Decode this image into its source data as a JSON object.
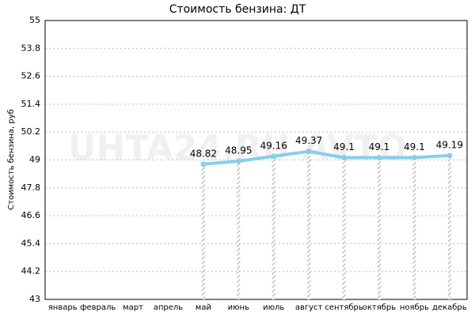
{
  "chart_data": {
    "type": "line",
    "title": "Стоимость бензина: ДТ",
    "y_label": "Стоимость бензина, руб",
    "watermark": "UHTA24.RU AVTO",
    "categories": [
      "январь",
      "февраль",
      "март",
      "апрель",
      "май",
      "июнь",
      "июль",
      "август",
      "сентябрь",
      "октябрь",
      "ноябрь",
      "декабрь"
    ],
    "series": [
      {
        "name": "ДТ",
        "color": "#87ceeb",
        "values": [
          null,
          null,
          null,
          null,
          48.82,
          48.95,
          49.16,
          49.37,
          49.1,
          49.1,
          49.1,
          49.19
        ]
      }
    ],
    "ylim": [
      43,
      55
    ],
    "yticks": [
      43,
      44.2,
      45.4,
      46.6,
      47.8,
      49,
      50.2,
      51.4,
      52.6,
      53.8,
      55
    ],
    "grid": true
  }
}
